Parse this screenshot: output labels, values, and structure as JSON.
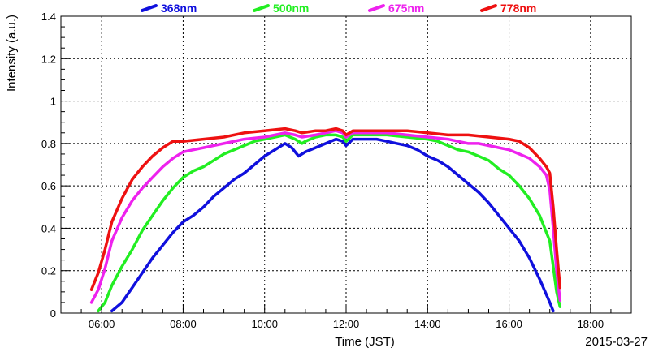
{
  "chart_data": {
    "type": "line",
    "xlabel": "Time (JST)",
    "ylabel": "Intensity (a.u.)",
    "date_label": "2015-03-27",
    "xlim": [
      "05:00",
      "19:00"
    ],
    "ylim": [
      0,
      1.4
    ],
    "x_ticks": [
      "06:00",
      "08:00",
      "10:00",
      "12:00",
      "14:00",
      "16:00",
      "18:00"
    ],
    "y_ticks": [
      "0",
      "0.2",
      "0.4",
      "0.6",
      "0.8",
      "1",
      "1.2",
      "1.4"
    ],
    "grid": true,
    "legend_position": "top",
    "series": [
      {
        "name": "368nm",
        "color": "#1010dd",
        "points": [
          [
            "06:15",
            0.01
          ],
          [
            "06:30",
            0.05
          ],
          [
            "06:45",
            0.12
          ],
          [
            "07:00",
            0.19
          ],
          [
            "07:15",
            0.26
          ],
          [
            "07:30",
            0.32
          ],
          [
            "07:45",
            0.38
          ],
          [
            "08:00",
            0.43
          ],
          [
            "08:15",
            0.46
          ],
          [
            "08:30",
            0.5
          ],
          [
            "08:45",
            0.55
          ],
          [
            "09:00",
            0.59
          ],
          [
            "09:15",
            0.63
          ],
          [
            "09:30",
            0.66
          ],
          [
            "09:45",
            0.7
          ],
          [
            "10:00",
            0.74
          ],
          [
            "10:15",
            0.77
          ],
          [
            "10:30",
            0.8
          ],
          [
            "10:40",
            0.78
          ],
          [
            "10:50",
            0.74
          ],
          [
            "11:00",
            0.76
          ],
          [
            "11:15",
            0.78
          ],
          [
            "11:30",
            0.8
          ],
          [
            "11:45",
            0.82
          ],
          [
            "11:55",
            0.81
          ],
          [
            "12:00",
            0.79
          ],
          [
            "12:10",
            0.82
          ],
          [
            "12:30",
            0.82
          ],
          [
            "12:45",
            0.82
          ],
          [
            "13:00",
            0.81
          ],
          [
            "13:15",
            0.8
          ],
          [
            "13:30",
            0.79
          ],
          [
            "13:45",
            0.77
          ],
          [
            "14:00",
            0.74
          ],
          [
            "14:15",
            0.72
          ],
          [
            "14:30",
            0.69
          ],
          [
            "14:45",
            0.65
          ],
          [
            "15:00",
            0.61
          ],
          [
            "15:15",
            0.57
          ],
          [
            "15:30",
            0.52
          ],
          [
            "15:45",
            0.46
          ],
          [
            "16:00",
            0.4
          ],
          [
            "16:15",
            0.34
          ],
          [
            "16:30",
            0.26
          ],
          [
            "16:45",
            0.16
          ],
          [
            "17:00",
            0.05
          ],
          [
            "17:05",
            0.01
          ]
        ]
      },
      {
        "name": "500nm",
        "color": "#22ee22",
        "points": [
          [
            "05:55",
            0.01
          ],
          [
            "06:05",
            0.05
          ],
          [
            "06:15",
            0.13
          ],
          [
            "06:30",
            0.22
          ],
          [
            "06:45",
            0.3
          ],
          [
            "07:00",
            0.39
          ],
          [
            "07:15",
            0.46
          ],
          [
            "07:30",
            0.53
          ],
          [
            "07:45",
            0.59
          ],
          [
            "08:00",
            0.64
          ],
          [
            "08:15",
            0.67
          ],
          [
            "08:30",
            0.69
          ],
          [
            "08:45",
            0.72
          ],
          [
            "09:00",
            0.75
          ],
          [
            "09:15",
            0.77
          ],
          [
            "09:30",
            0.79
          ],
          [
            "09:45",
            0.81
          ],
          [
            "10:00",
            0.82
          ],
          [
            "10:15",
            0.83
          ],
          [
            "10:30",
            0.84
          ],
          [
            "10:45",
            0.82
          ],
          [
            "10:55",
            0.8
          ],
          [
            "11:00",
            0.81
          ],
          [
            "11:15",
            0.83
          ],
          [
            "11:30",
            0.84
          ],
          [
            "11:45",
            0.84
          ],
          [
            "11:55",
            0.83
          ],
          [
            "12:00",
            0.81
          ],
          [
            "12:10",
            0.84
          ],
          [
            "12:30",
            0.84
          ],
          [
            "13:00",
            0.84
          ],
          [
            "13:30",
            0.83
          ],
          [
            "14:00",
            0.82
          ],
          [
            "14:15",
            0.81
          ],
          [
            "14:30",
            0.79
          ],
          [
            "14:45",
            0.77
          ],
          [
            "15:00",
            0.76
          ],
          [
            "15:15",
            0.74
          ],
          [
            "15:30",
            0.72
          ],
          [
            "15:45",
            0.68
          ],
          [
            "16:00",
            0.65
          ],
          [
            "16:15",
            0.6
          ],
          [
            "16:30",
            0.54
          ],
          [
            "16:45",
            0.46
          ],
          [
            "17:00",
            0.34
          ],
          [
            "17:10",
            0.1
          ],
          [
            "17:15",
            0.03
          ]
        ]
      },
      {
        "name": "675nm",
        "color": "#ee22ee",
        "points": [
          [
            "05:45",
            0.05
          ],
          [
            "05:55",
            0.11
          ],
          [
            "06:05",
            0.21
          ],
          [
            "06:15",
            0.34
          ],
          [
            "06:30",
            0.45
          ],
          [
            "06:45",
            0.53
          ],
          [
            "07:00",
            0.59
          ],
          [
            "07:15",
            0.64
          ],
          [
            "07:30",
            0.69
          ],
          [
            "07:45",
            0.73
          ],
          [
            "08:00",
            0.76
          ],
          [
            "08:15",
            0.77
          ],
          [
            "08:30",
            0.78
          ],
          [
            "09:00",
            0.8
          ],
          [
            "09:30",
            0.82
          ],
          [
            "10:00",
            0.83
          ],
          [
            "10:30",
            0.85
          ],
          [
            "10:45",
            0.84
          ],
          [
            "10:55",
            0.83
          ],
          [
            "11:15",
            0.84
          ],
          [
            "11:30",
            0.85
          ],
          [
            "11:45",
            0.86
          ],
          [
            "11:55",
            0.85
          ],
          [
            "12:00",
            0.83
          ],
          [
            "12:10",
            0.85
          ],
          [
            "12:30",
            0.85
          ],
          [
            "13:00",
            0.85
          ],
          [
            "13:30",
            0.84
          ],
          [
            "14:00",
            0.83
          ],
          [
            "14:30",
            0.82
          ],
          [
            "15:00",
            0.8
          ],
          [
            "15:15",
            0.8
          ],
          [
            "15:30",
            0.79
          ],
          [
            "15:45",
            0.78
          ],
          [
            "16:00",
            0.77
          ],
          [
            "16:15",
            0.75
          ],
          [
            "16:30",
            0.73
          ],
          [
            "16:45",
            0.69
          ],
          [
            "16:55",
            0.65
          ],
          [
            "17:00",
            0.58
          ],
          [
            "17:05",
            0.4
          ],
          [
            "17:10",
            0.2
          ],
          [
            "17:15",
            0.06
          ]
        ]
      },
      {
        "name": "778nm",
        "color": "#ee1111",
        "points": [
          [
            "05:45",
            0.11
          ],
          [
            "05:55",
            0.19
          ],
          [
            "06:05",
            0.3
          ],
          [
            "06:15",
            0.43
          ],
          [
            "06:30",
            0.54
          ],
          [
            "06:45",
            0.63
          ],
          [
            "07:00",
            0.69
          ],
          [
            "07:15",
            0.74
          ],
          [
            "07:30",
            0.78
          ],
          [
            "07:45",
            0.81
          ],
          [
            "08:00",
            0.81
          ],
          [
            "08:30",
            0.82
          ],
          [
            "09:00",
            0.83
          ],
          [
            "09:30",
            0.85
          ],
          [
            "10:00",
            0.86
          ],
          [
            "10:30",
            0.87
          ],
          [
            "10:45",
            0.86
          ],
          [
            "10:55",
            0.85
          ],
          [
            "11:15",
            0.86
          ],
          [
            "11:30",
            0.86
          ],
          [
            "11:45",
            0.87
          ],
          [
            "11:55",
            0.86
          ],
          [
            "12:00",
            0.84
          ],
          [
            "12:10",
            0.86
          ],
          [
            "12:30",
            0.86
          ],
          [
            "13:00",
            0.86
          ],
          [
            "13:30",
            0.86
          ],
          [
            "14:00",
            0.85
          ],
          [
            "14:30",
            0.84
          ],
          [
            "15:00",
            0.84
          ],
          [
            "15:30",
            0.83
          ],
          [
            "16:00",
            0.82
          ],
          [
            "16:15",
            0.81
          ],
          [
            "16:30",
            0.78
          ],
          [
            "16:45",
            0.73
          ],
          [
            "16:55",
            0.69
          ],
          [
            "17:00",
            0.66
          ],
          [
            "17:05",
            0.5
          ],
          [
            "17:10",
            0.3
          ],
          [
            "17:15",
            0.12
          ]
        ]
      }
    ]
  }
}
